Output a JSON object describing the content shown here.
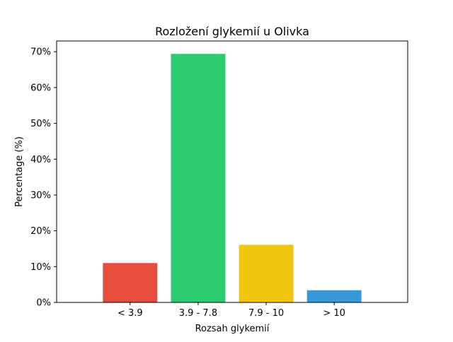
{
  "chart_data": {
    "type": "bar",
    "title": "Rozložení glykemií u  Olivka",
    "xlabel": "Rozsah glykemií",
    "ylabel": "Percentage (%)",
    "categories": [
      "< 3.9",
      "3.9 - 7.8",
      "7.9 - 10",
      "> 10"
    ],
    "values": [
      11.0,
      69.4,
      16.1,
      3.4
    ],
    "colors": [
      "#e74c3c",
      "#2ecc71",
      "#f1c40f",
      "#3498db"
    ],
    "ylim": [
      0,
      73.0
    ],
    "yticks": [
      0,
      10,
      20,
      30,
      40,
      50,
      60,
      70
    ],
    "ytick_format": "{v}%",
    "grid": false,
    "legend": "none"
  }
}
